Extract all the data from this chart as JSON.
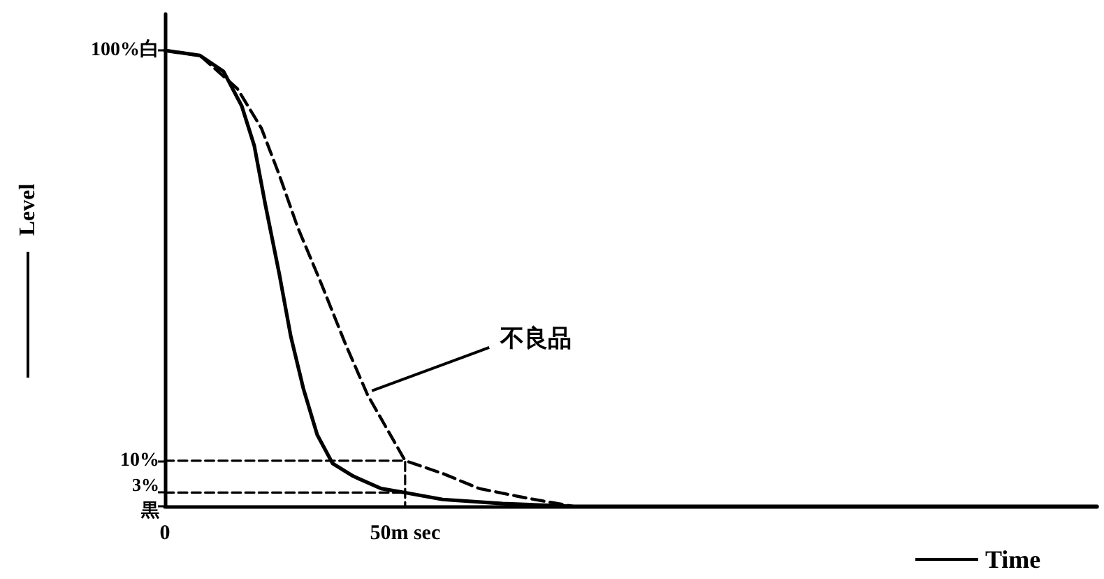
{
  "chart_data": {
    "type": "line",
    "xlabel": "Time",
    "ylabel": "Level",
    "xlim": [
      0,
      194
    ],
    "ylim": [
      0,
      108
    ],
    "xticks": [
      0,
      {
        "value": 50,
        "label": "50m sec"
      }
    ],
    "yticks": [
      {
        "value": 0,
        "label": "黒"
      },
      {
        "value": 3,
        "label": "3%"
      },
      {
        "value": 10,
        "label": "10%"
      },
      {
        "value": 100,
        "label": "100%白"
      }
    ],
    "marker": "none",
    "legend": false,
    "series": [
      {
        "color": "#000000",
        "line_style": "solid",
        "x": [
          0,
          7.3,
          12.2,
          16,
          18.6,
          20.9,
          23.8,
          26.2,
          28.8,
          31.7,
          34.9,
          39.2,
          45,
          50,
          57.8,
          70.3,
          84.9,
          194
        ],
        "values": [
          100,
          98.9,
          95.4,
          87.8,
          79.1,
          66.2,
          51,
          37.3,
          25.9,
          15.7,
          9.4,
          6.6,
          3.9,
          3,
          1.5,
          0.6,
          0,
          0
        ]
      },
      {
        "name": "不良品",
        "color": "#000000",
        "line_style": "dashed",
        "x": [
          0,
          7.3,
          15.1,
          20.1,
          23.8,
          27.6,
          32.6,
          37.5,
          42.2,
          50,
          57.8,
          65.4,
          75.3,
          84.9
        ],
        "values": [
          100,
          98.9,
          91.6,
          82.9,
          72.7,
          61.3,
          48.7,
          35.8,
          24.4,
          10,
          7.2,
          3.9,
          1.8,
          0
        ]
      },
      {
        "color": "#000000",
        "line_style": "dashed",
        "x": [
          0,
          50,
          50
        ],
        "values": [
          10,
          10,
          0
        ]
      },
      {
        "color": "#000000",
        "line_style": "dashed",
        "x": [
          0,
          50
        ],
        "values": [
          3,
          3
        ]
      }
    ]
  }
}
